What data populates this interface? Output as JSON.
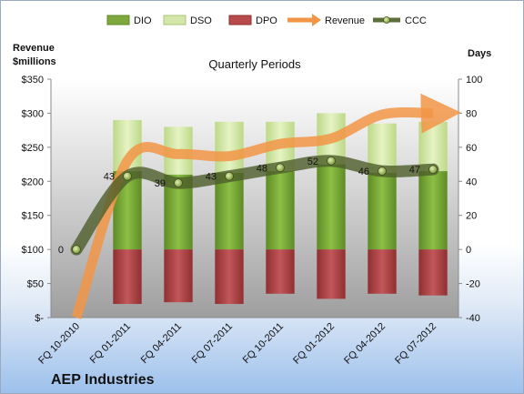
{
  "chart_data": {
    "type": "bar",
    "title": "Quarterly Periods",
    "company": "AEP Industries",
    "left_axis_label": [
      "Revenue",
      "$millions"
    ],
    "right_axis_label": "Days",
    "categories": [
      "FQ 10-2010",
      "FQ 01-2011",
      "FQ 04-2011",
      "FQ 07-2011",
      "FQ 10-2011",
      "FQ 01-2012",
      "FQ 04-2012",
      "FQ 07-2012"
    ],
    "left_ticks": [
      "$-",
      "$50",
      "$100",
      "$150",
      "$200",
      "$250",
      "$300",
      "$350"
    ],
    "right_ticks": [
      "-40",
      "-20",
      "0",
      "20",
      "40",
      "60",
      "80",
      "100"
    ],
    "ylim_left": [
      0,
      350
    ],
    "ylim_right": [
      -40,
      100
    ],
    "series": [
      {
        "name": "DIO",
        "axis": "right",
        "kind": "stacked-bar",
        "color": "#7ea83c",
        "values": [
          null,
          46,
          44,
          45,
          46,
          50,
          45,
          46
        ]
      },
      {
        "name": "DSO",
        "axis": "right",
        "kind": "stacked-bar",
        "color": "#d4e6a8",
        "values": [
          null,
          30,
          28,
          30,
          29,
          30,
          29,
          29
        ]
      },
      {
        "name": "DPO",
        "axis": "right",
        "kind": "negative-bar",
        "color": "#b94a4c",
        "values": [
          null,
          -32,
          -31,
          -32,
          -26,
          -29,
          -26,
          -27
        ]
      },
      {
        "name": "Revenue",
        "axis": "left",
        "kind": "line",
        "color": "#f29545",
        "values": [
          0,
          230,
          240,
          237,
          255,
          263,
          298,
          300
        ]
      },
      {
        "name": "CCC",
        "axis": "right",
        "kind": "line",
        "color": "#5e6e3a",
        "values": [
          0,
          43,
          39,
          43,
          48,
          52,
          46,
          47
        ]
      }
    ],
    "ccc_labels": [
      "0",
      "43",
      "39",
      "43",
      "48",
      "52",
      "46",
      "47"
    ],
    "legend": [
      "DIO",
      "DSO",
      "DPO",
      "Revenue",
      "CCC"
    ],
    "legend_position": "top",
    "grid": false
  }
}
